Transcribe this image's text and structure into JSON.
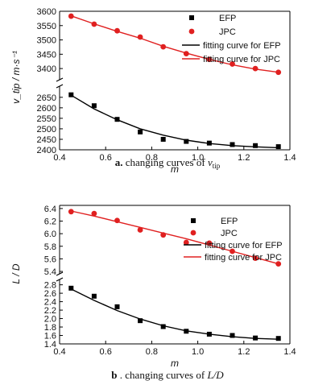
{
  "chart_data": [
    {
      "type": "scatter",
      "caption": {
        "letter": "a.",
        "text": "changing curves of",
        "symbol": "v",
        "subscript": "tip"
      },
      "xlabel": "m",
      "ylabel": "v_tip / m·s⁻¹",
      "xlim": [
        0.4,
        1.4
      ],
      "x_ticks": [
        "0.4",
        "0.6",
        "0.8",
        "1.0",
        "1.2",
        "1.4"
      ],
      "y_axis_break": true,
      "upper_ylim": [
        3375,
        3600
      ],
      "upper_y_ticks": [
        "3400",
        "3450",
        "3500",
        "3550",
        "3600"
      ],
      "lower_ylim": [
        2400,
        2680
      ],
      "lower_y_ticks": [
        "2400",
        "2450",
        "2500",
        "2550",
        "2600",
        "2650"
      ],
      "legend_position": "top-right",
      "x": [
        0.45,
        0.55,
        0.65,
        0.75,
        0.85,
        0.95,
        1.05,
        1.15,
        1.25,
        1.35
      ],
      "series": [
        {
          "name": "EFP",
          "marker": "square",
          "color": "#000000",
          "values": [
            2662,
            2610,
            2545,
            2485,
            2450,
            2440,
            2432,
            2425,
            2420,
            2415
          ]
        },
        {
          "name": "JPC",
          "marker": "circle",
          "color": "#e02020",
          "values": [
            3583,
            3555,
            3532,
            3510,
            3476,
            3452,
            3432,
            3416,
            3400,
            3387
          ]
        },
        {
          "name": "fitting curve for EFP",
          "kind": "line",
          "color": "#000000",
          "values": [
            2660,
            2595,
            2543,
            2500,
            2470,
            2446,
            2430,
            2420,
            2414,
            2410
          ]
        },
        {
          "name": "fitting curve for JPC",
          "kind": "line",
          "color": "#e02020",
          "values": [
            3584,
            3556,
            3530,
            3506,
            3478,
            3454,
            3432,
            3413,
            3398,
            3387
          ]
        }
      ]
    },
    {
      "type": "scatter",
      "caption": {
        "letter": "b",
        "text": ". changing curves of",
        "symbol": "L/D",
        "subscript": ""
      },
      "xlabel": "m",
      "ylabel": "L / D",
      "xlim": [
        0.4,
        1.4
      ],
      "x_ticks": [
        "0.4",
        "0.6",
        "0.8",
        "1.0",
        "1.2",
        "1.4"
      ],
      "y_axis_break": true,
      "upper_ylim": [
        5.4,
        6.45
      ],
      "upper_y_ticks": [
        "5.4",
        "5.6",
        "5.8",
        "6.0",
        "6.2",
        "6.4"
      ],
      "lower_ylim": [
        1.4,
        2.85
      ],
      "lower_y_ticks": [
        "1.4",
        "1.6",
        "1.8",
        "2.0",
        "2.2",
        "2.4",
        "2.6",
        "2.8"
      ],
      "legend_position": "top-right",
      "x": [
        0.45,
        0.55,
        0.65,
        0.75,
        0.85,
        0.95,
        1.05,
        1.15,
        1.25,
        1.35
      ],
      "series": [
        {
          "name": "EFP",
          "marker": "square",
          "color": "#000000",
          "values": [
            2.72,
            2.53,
            2.28,
            1.95,
            1.81,
            1.7,
            1.63,
            1.6,
            1.54,
            1.53
          ]
        },
        {
          "name": "JPC",
          "marker": "circle",
          "color": "#e02020",
          "values": [
            6.35,
            6.32,
            6.21,
            6.06,
            5.98,
            5.86,
            5.85,
            5.72,
            5.61,
            5.52
          ]
        },
        {
          "name": "fitting curve for EFP",
          "kind": "line",
          "color": "#000000",
          "values": [
            2.7,
            2.43,
            2.19,
            1.99,
            1.83,
            1.71,
            1.63,
            1.57,
            1.53,
            1.51
          ]
        },
        {
          "name": "fitting curve for JPC",
          "kind": "line",
          "color": "#e02020",
          "values": [
            6.36,
            6.28,
            6.19,
            6.1,
            6.01,
            5.92,
            5.82,
            5.72,
            5.62,
            5.52
          ]
        }
      ]
    }
  ]
}
